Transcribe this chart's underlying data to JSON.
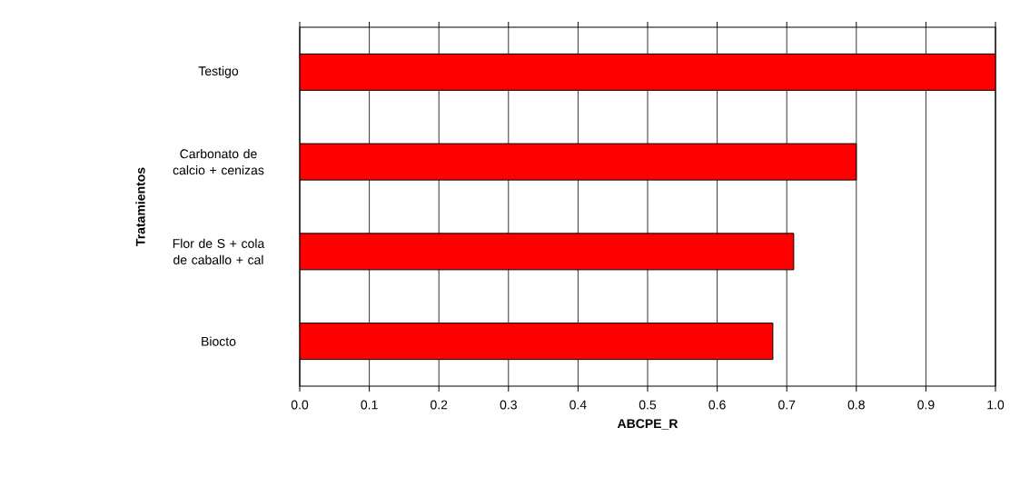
{
  "chart_data": {
    "type": "bar",
    "orientation": "horizontal",
    "xlabel": "ABCPE_R",
    "ylabel": "Tratamientos",
    "categories": [
      "Testigo",
      "Carbonato de calcio + cenizas",
      "Flor de S + cola de caballo + cal",
      "Biocto"
    ],
    "values": [
      1.0,
      0.8,
      0.71,
      0.68
    ],
    "color": "#ff0000",
    "xlim": [
      0,
      1
    ],
    "xticks": [
      {
        "value": 0,
        "label": "0.0"
      },
      {
        "value": 0.1,
        "label": "0.1"
      },
      {
        "value": 0.2,
        "label": "0.2"
      },
      {
        "value": 0.3,
        "label": "0.3"
      },
      {
        "value": 0.4,
        "label": "0.4"
      },
      {
        "value": 0.5,
        "label": "0.5"
      },
      {
        "value": 0.6,
        "label": "0.6"
      },
      {
        "value": 0.7,
        "label": "0.7"
      },
      {
        "value": 0.8,
        "label": "0.8"
      },
      {
        "value": 0.9,
        "label": "0.9"
      },
      {
        "value": 1,
        "label": "1.0"
      }
    ],
    "grid": "x"
  }
}
